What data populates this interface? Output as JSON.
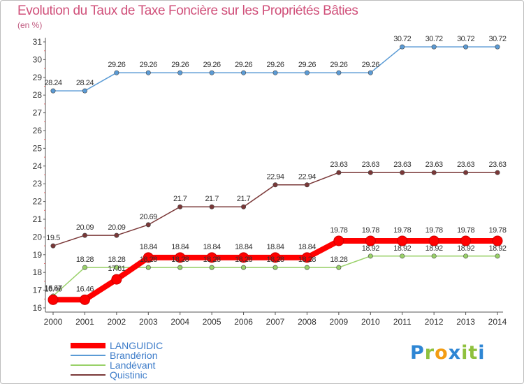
{
  "page": {
    "title": "Evolution du Taux de Taxe Foncière sur les Propriétés Bâties",
    "unit_label": "(en %)",
    "logo": "Proxiti"
  },
  "chart_data": {
    "type": "line",
    "title": "Evolution du Taux de Taxe Foncière sur les Propriétés Bâties",
    "ylabel": "(en %)",
    "xlabel": "",
    "x": [
      "2000",
      "2001",
      "2002",
      "2003",
      "2004",
      "2005",
      "2006",
      "2007",
      "2008",
      "2009",
      "2010",
      "2011",
      "2012",
      "2013",
      "2014"
    ],
    "ylim": [
      16,
      31
    ],
    "yticks": [
      16,
      17,
      18,
      19,
      20,
      21,
      22,
      23,
      24,
      25,
      26,
      27,
      28,
      29,
      30,
      31
    ],
    "grid": false,
    "legend_position": "bottom-left",
    "series": [
      {
        "name": "LANGUIDIC",
        "color": "#ff0000",
        "values": [
          16.46,
          16.46,
          17.61,
          18.84,
          18.84,
          18.84,
          18.84,
          18.84,
          18.84,
          19.78,
          19.78,
          19.78,
          19.78,
          19.78,
          19.78
        ],
        "labels": [
          "16.46",
          "16.46",
          "17.61",
          "18.84",
          "18.84",
          "18.84",
          "18.84",
          "18.84",
          "18.84",
          "19.78",
          "19.78",
          "19.78",
          "19.78",
          "19.78",
          "19.78"
        ],
        "thick": true
      },
      {
        "name": "Brandérion",
        "color": "#5b9bd5",
        "values": [
          28.24,
          28.24,
          29.26,
          29.26,
          29.26,
          29.26,
          29.26,
          29.26,
          29.26,
          29.26,
          29.26,
          30.72,
          30.72,
          30.72,
          30.72
        ],
        "labels": [
          "28.24",
          "28.24",
          "29.26",
          "29.26",
          "29.26",
          "29.26",
          "29.26",
          "29.26",
          "29.26",
          "29.26",
          "29.26",
          "30.72",
          "30.72",
          "30.72",
          "30.72"
        ]
      },
      {
        "name": "Landévant",
        "color": "#99d169",
        "values": [
          16.67,
          18.28,
          18.28,
          18.28,
          18.28,
          18.28,
          18.28,
          18.28,
          18.28,
          18.28,
          18.92,
          18.92,
          18.92,
          18.92,
          18.92
        ],
        "labels": [
          "16.67",
          "18.28",
          "18.28",
          "18.28",
          "18.28",
          "18.28",
          "18.28",
          "18.28",
          "18.28",
          "18.28",
          "18.92",
          "18.92",
          "18.92",
          "18.92",
          "18.92"
        ]
      },
      {
        "name": "Quistinic",
        "color": "#7a3838",
        "values": [
          19.5,
          20.09,
          20.09,
          20.69,
          21.7,
          21.7,
          21.7,
          22.94,
          22.94,
          23.63,
          23.63,
          23.63,
          23.63,
          23.63,
          23.63
        ],
        "labels": [
          "19.5",
          "20.09",
          "20.09",
          "20.69",
          "21.7",
          "21.7",
          "21.7",
          "22.94",
          "22.94",
          "23.63",
          "23.63",
          "23.63",
          "23.63",
          "23.63",
          "23.63"
        ]
      }
    ]
  }
}
